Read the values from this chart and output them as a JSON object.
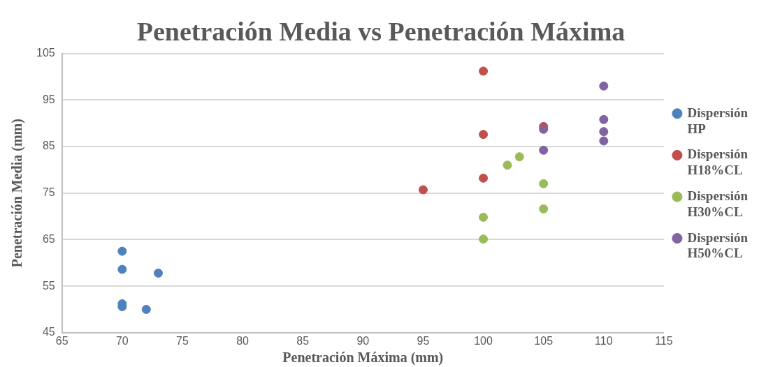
{
  "chart_data": {
    "type": "scatter",
    "title": "Penetración Media vs Penetración Máxima",
    "xlabel": "Penetración Máxima (mm)",
    "ylabel": "Penetración Media (mm)",
    "xlim": [
      65,
      115
    ],
    "xticks": [
      65,
      70,
      75,
      80,
      85,
      90,
      95,
      100,
      105,
      110,
      115
    ],
    "ylim": [
      45,
      105
    ],
    "yticks": [
      45,
      55,
      65,
      75,
      85,
      95,
      105
    ],
    "grid": "y",
    "legend": "right",
    "marker": "circle",
    "series": [
      {
        "name": "Dispersión HP",
        "color": "#4f81bd",
        "x": [
          70,
          70,
          73,
          70,
          70,
          72
        ],
        "values": [
          62.5,
          58.6,
          57.8,
          51.2,
          50.6,
          50
        ]
      },
      {
        "name": "Dispersión H18%CL",
        "color": "#c0504d",
        "x": [
          95,
          100,
          100,
          100,
          105
        ],
        "values": [
          75.7,
          101.2,
          87.6,
          78.2,
          89.3
        ]
      },
      {
        "name": "Dispersión H30%CL",
        "color": "#9bbb59",
        "x": [
          102,
          103,
          100,
          100,
          105,
          105
        ],
        "values": [
          81,
          82.8,
          69.8,
          65.1,
          77,
          71.6
        ]
      },
      {
        "name": "Dispersión H50%CL",
        "color": "#8064a2",
        "x": [
          105,
          105,
          110,
          110,
          110,
          110
        ],
        "values": [
          88.7,
          84.2,
          98,
          90.8,
          88.2,
          86.2
        ]
      }
    ]
  }
}
